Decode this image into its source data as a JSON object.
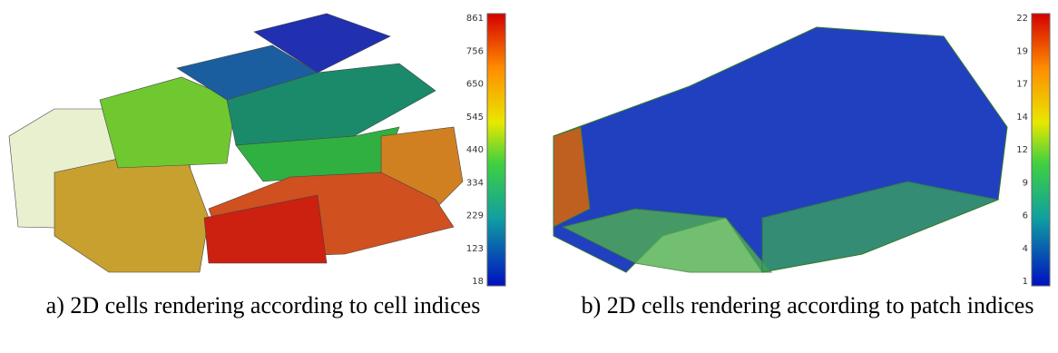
{
  "panels": [
    {
      "caption": "a) 2D cells rendering according to cell indices",
      "colorbar": {
        "ticks": [
          861,
          756,
          650,
          545,
          440,
          334,
          229,
          123,
          18
        ]
      }
    },
    {
      "caption": "b) 2D cells rendering according to patch indices",
      "colorbar": {
        "ticks": [
          22,
          19,
          17,
          14,
          12,
          9,
          6,
          4,
          1
        ]
      }
    }
  ]
}
